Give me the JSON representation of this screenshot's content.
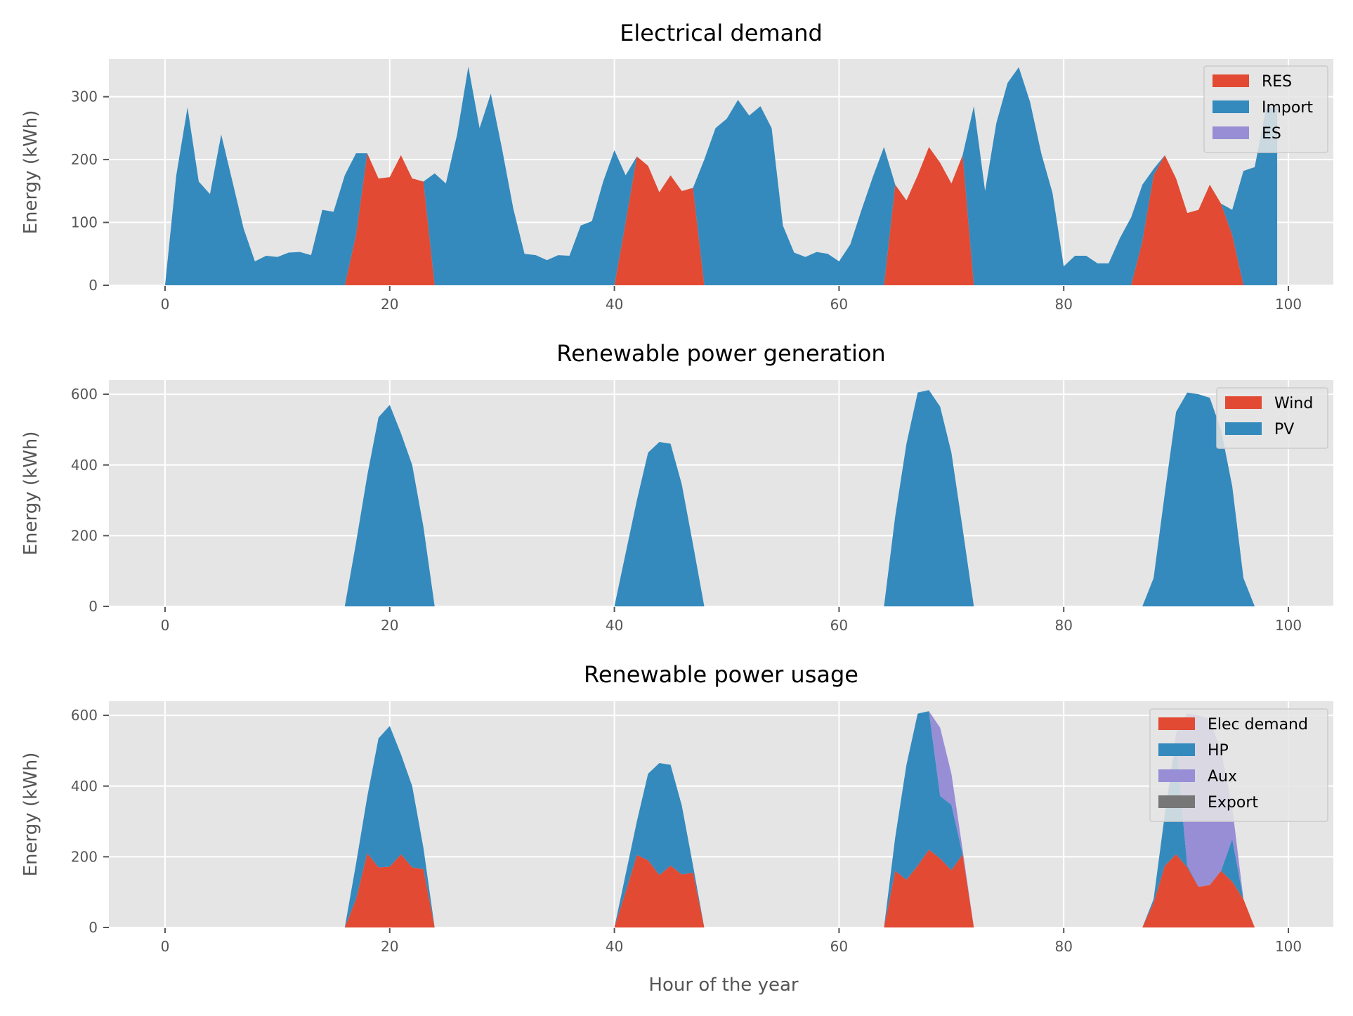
{
  "figure": {
    "xlabel": "Hour of the year"
  },
  "chart_data": [
    {
      "type": "area",
      "stacked": true,
      "title": "Electrical demand",
      "ylabel": "Energy (kWh)",
      "xlim": [
        -5,
        104
      ],
      "ylim": [
        0,
        360
      ],
      "xticks": [
        0,
        20,
        40,
        60,
        80,
        100
      ],
      "yticks": [
        0,
        100,
        200,
        300
      ],
      "grid": true,
      "legend_position": "top-right",
      "series": [
        {
          "name": "RES",
          "color": "#E24A33",
          "x": [
            0,
            1,
            2,
            3,
            4,
            5,
            6,
            7,
            8,
            9,
            10,
            11,
            12,
            13,
            14,
            15,
            16,
            17,
            18,
            19,
            20,
            21,
            22,
            23,
            24,
            25,
            26,
            27,
            28,
            29,
            30,
            31,
            32,
            33,
            34,
            35,
            36,
            37,
            38,
            39,
            40,
            41,
            42,
            43,
            44,
            45,
            46,
            47,
            48,
            49,
            50,
            51,
            52,
            53,
            54,
            55,
            56,
            57,
            58,
            59,
            60,
            61,
            62,
            63,
            64,
            65,
            66,
            67,
            68,
            69,
            70,
            71,
            72,
            73,
            74,
            75,
            76,
            77,
            78,
            79,
            80,
            81,
            82,
            83,
            84,
            85,
            86,
            87,
            88,
            89,
            90,
            91,
            92,
            93,
            94,
            95,
            96,
            97,
            98,
            99
          ],
          "y": [
            0,
            0,
            0,
            0,
            0,
            0,
            0,
            0,
            0,
            0,
            0,
            0,
            0,
            0,
            0,
            0,
            0,
            80,
            210,
            170,
            172,
            207,
            170,
            165,
            0,
            0,
            0,
            0,
            0,
            0,
            0,
            0,
            0,
            0,
            0,
            0,
            0,
            0,
            0,
            0,
            0,
            100,
            205,
            190,
            148,
            175,
            150,
            155,
            0,
            0,
            0,
            0,
            0,
            0,
            0,
            0,
            0,
            0,
            0,
            0,
            0,
            0,
            0,
            0,
            0,
            160,
            135,
            175,
            220,
            195,
            162,
            207,
            0,
            0,
            0,
            0,
            0,
            0,
            0,
            0,
            0,
            0,
            0,
            0,
            0,
            0,
            0,
            70,
            175,
            207,
            170,
            115,
            120,
            160,
            130,
            80,
            0,
            0,
            0,
            0
          ]
        },
        {
          "name": "Import",
          "color": "#348ABD",
          "x": [
            0,
            1,
            2,
            3,
            4,
            5,
            6,
            7,
            8,
            9,
            10,
            11,
            12,
            13,
            14,
            15,
            16,
            17,
            18,
            19,
            20,
            21,
            22,
            23,
            24,
            25,
            26,
            27,
            28,
            29,
            30,
            31,
            32,
            33,
            34,
            35,
            36,
            37,
            38,
            39,
            40,
            41,
            42,
            43,
            44,
            45,
            46,
            47,
            48,
            49,
            50,
            51,
            52,
            53,
            54,
            55,
            56,
            57,
            58,
            59,
            60,
            61,
            62,
            63,
            64,
            65,
            66,
            67,
            68,
            69,
            70,
            71,
            72,
            73,
            74,
            75,
            76,
            77,
            78,
            79,
            80,
            81,
            82,
            83,
            84,
            85,
            86,
            87,
            88,
            89,
            90,
            91,
            92,
            93,
            94,
            95,
            96,
            97,
            98,
            99
          ],
          "y": [
            0,
            175,
            283,
            165,
            145,
            240,
            165,
            90,
            38,
            47,
            45,
            52,
            53,
            48,
            120,
            117,
            175,
            130,
            0,
            0,
            0,
            0,
            0,
            0,
            178,
            162,
            240,
            348,
            250,
            305,
            217,
            122,
            50,
            48,
            40,
            48,
            47,
            95,
            102,
            165,
            215,
            75,
            0,
            0,
            0,
            0,
            0,
            0,
            200,
            250,
            265,
            295,
            270,
            285,
            250,
            95,
            52,
            45,
            53,
            50,
            38,
            65,
            120,
            172,
            220,
            0,
            0,
            0,
            0,
            0,
            0,
            0,
            285,
            150,
            258,
            322,
            347,
            292,
            210,
            147,
            30,
            47,
            47,
            35,
            35,
            75,
            108,
            90,
            10,
            0,
            0,
            0,
            0,
            0,
            0,
            40,
            182,
            188,
            280,
            287
          ]
        },
        {
          "name": "ES",
          "color": "#988ED5",
          "x": [
            0,
            99
          ],
          "y": [
            0,
            0
          ]
        }
      ]
    },
    {
      "type": "area",
      "stacked": true,
      "title": "Renewable power generation",
      "ylabel": "Energy (kWh)",
      "xlim": [
        -5,
        104
      ],
      "ylim": [
        0,
        640
      ],
      "xticks": [
        0,
        20,
        40,
        60,
        80,
        100
      ],
      "yticks": [
        0,
        200,
        400,
        600
      ],
      "grid": true,
      "legend_position": "top-right",
      "series": [
        {
          "name": "Wind",
          "color": "#E24A33",
          "x": [
            0,
            99
          ],
          "y": [
            0,
            0
          ]
        },
        {
          "name": "PV",
          "color": "#348ABD",
          "x": [
            0,
            16,
            17,
            18,
            19,
            20,
            21,
            22,
            23,
            24,
            40,
            41,
            42,
            43,
            44,
            45,
            46,
            47,
            48,
            64,
            65,
            66,
            67,
            68,
            69,
            70,
            71,
            72,
            87,
            88,
            89,
            90,
            91,
            92,
            93,
            94,
            95,
            96,
            97,
            99
          ],
          "y": [
            0,
            0,
            180,
            370,
            535,
            570,
            490,
            400,
            225,
            0,
            0,
            150,
            300,
            435,
            465,
            460,
            345,
            175,
            0,
            0,
            255,
            460,
            605,
            612,
            565,
            435,
            220,
            0,
            0,
            80,
            320,
            550,
            605,
            600,
            590,
            500,
            340,
            80,
            0,
            0
          ]
        }
      ]
    },
    {
      "type": "area",
      "stacked": true,
      "title": "Renewable power usage",
      "ylabel": "Energy (kWh)",
      "xlim": [
        -5,
        104
      ],
      "ylim": [
        0,
        640
      ],
      "xticks": [
        0,
        20,
        40,
        60,
        80,
        100
      ],
      "yticks": [
        0,
        200,
        400,
        600
      ],
      "grid": true,
      "legend_position": "top-right",
      "series": [
        {
          "name": "Elec demand",
          "color": "#E24A33",
          "x": [
            0,
            16,
            17,
            18,
            19,
            20,
            21,
            22,
            23,
            24,
            40,
            41,
            42,
            43,
            44,
            45,
            46,
            47,
            48,
            64,
            65,
            66,
            67,
            68,
            69,
            70,
            71,
            72,
            87,
            88,
            89,
            90,
            91,
            92,
            93,
            94,
            95,
            96,
            97,
            99
          ],
          "y": [
            0,
            0,
            80,
            210,
            170,
            172,
            207,
            170,
            165,
            0,
            0,
            100,
            205,
            190,
            148,
            175,
            150,
            155,
            0,
            0,
            160,
            135,
            175,
            220,
            195,
            162,
            207,
            0,
            0,
            70,
            175,
            207,
            170,
            115,
            120,
            160,
            130,
            80,
            0,
            0
          ]
        },
        {
          "name": "HP",
          "color": "#348ABD",
          "x": [
            0,
            16,
            17,
            18,
            19,
            20,
            21,
            22,
            23,
            24,
            40,
            41,
            42,
            43,
            44,
            45,
            46,
            47,
            48,
            64,
            65,
            66,
            67,
            68,
            69,
            70,
            71,
            72,
            87,
            88,
            89,
            90,
            91,
            92,
            93,
            94,
            95,
            96,
            97,
            99
          ],
          "y": [
            0,
            0,
            100,
            160,
            365,
            398,
            283,
            230,
            60,
            0,
            0,
            50,
            95,
            245,
            317,
            285,
            195,
            20,
            0,
            0,
            95,
            325,
            430,
            392,
            177,
            185,
            0,
            0,
            0,
            10,
            145,
            310,
            5,
            0,
            0,
            0,
            120,
            0,
            0,
            0
          ]
        },
        {
          "name": "Aux",
          "color": "#988ED5",
          "x": [
            0,
            16,
            17,
            18,
            19,
            20,
            21,
            22,
            23,
            24,
            40,
            41,
            42,
            43,
            44,
            45,
            46,
            47,
            48,
            64,
            65,
            66,
            67,
            68,
            69,
            70,
            71,
            72,
            87,
            88,
            89,
            90,
            91,
            92,
            93,
            94,
            95,
            96,
            97,
            99
          ],
          "y": [
            0,
            0,
            0,
            0,
            0,
            0,
            0,
            0,
            0,
            0,
            0,
            0,
            0,
            0,
            0,
            0,
            0,
            0,
            0,
            0,
            0,
            0,
            0,
            0,
            193,
            88,
            13,
            0,
            0,
            0,
            0,
            33,
            430,
            485,
            470,
            340,
            90,
            0,
            0,
            0
          ]
        },
        {
          "name": "Export",
          "color": "#777777",
          "x": [
            0,
            99
          ],
          "y": [
            0,
            0
          ]
        }
      ]
    }
  ]
}
